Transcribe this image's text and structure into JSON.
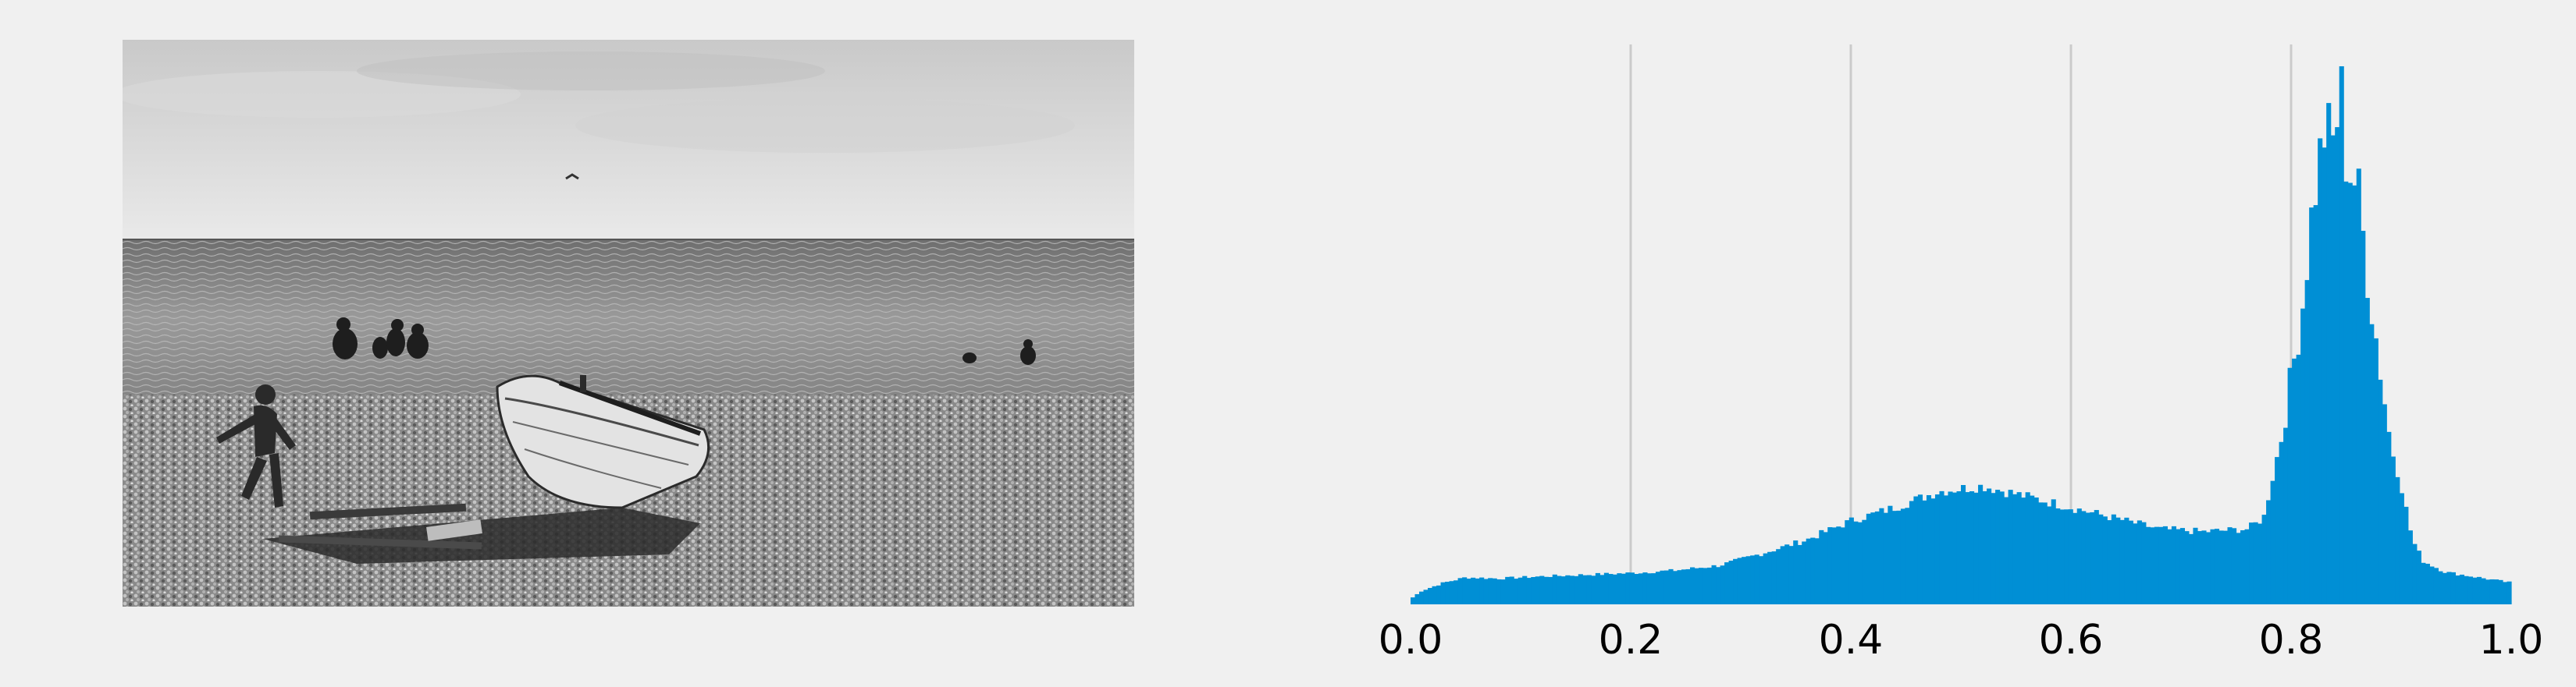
{
  "colors": {
    "background": "#f0f0f0",
    "bar": "#008fd5",
    "grid": "#cbcbcb"
  },
  "photo": {
    "description_icon": "beach-photo-icon"
  },
  "chart_data": {
    "type": "bar",
    "title": "",
    "xlabel": "",
    "ylabel": "",
    "xlim": [
      0.0,
      1.0
    ],
    "ylim": [
      0,
      1.0
    ],
    "grid": "x-only",
    "xticks": [
      0.0,
      0.2,
      0.4,
      0.6,
      0.8,
      1.0
    ],
    "xtick_labels": [
      "0.0",
      "0.2",
      "0.4",
      "0.6",
      "0.8",
      "1.0"
    ],
    "bins": 256,
    "profile_points": [
      [
        0.0,
        0.01
      ],
      [
        0.01,
        0.025
      ],
      [
        0.03,
        0.04
      ],
      [
        0.05,
        0.05
      ],
      [
        0.08,
        0.048
      ],
      [
        0.12,
        0.052
      ],
      [
        0.16,
        0.055
      ],
      [
        0.2,
        0.058
      ],
      [
        0.24,
        0.063
      ],
      [
        0.28,
        0.072
      ],
      [
        0.32,
        0.095
      ],
      [
        0.36,
        0.12
      ],
      [
        0.4,
        0.155
      ],
      [
        0.44,
        0.18
      ],
      [
        0.48,
        0.21
      ],
      [
        0.52,
        0.22
      ],
      [
        0.56,
        0.2
      ],
      [
        0.6,
        0.18
      ],
      [
        0.64,
        0.16
      ],
      [
        0.68,
        0.14
      ],
      [
        0.72,
        0.135
      ],
      [
        0.76,
        0.14
      ],
      [
        0.775,
        0.16
      ],
      [
        0.79,
        0.3
      ],
      [
        0.8,
        0.42
      ],
      [
        0.81,
        0.55
      ],
      [
        0.82,
        0.75
      ],
      [
        0.83,
        0.88
      ],
      [
        0.84,
        0.85
      ],
      [
        0.845,
        1.0
      ],
      [
        0.85,
        0.82
      ],
      [
        0.86,
        0.78
      ],
      [
        0.87,
        0.6
      ],
      [
        0.88,
        0.45
      ],
      [
        0.89,
        0.3
      ],
      [
        0.9,
        0.22
      ],
      [
        0.91,
        0.12
      ],
      [
        0.92,
        0.08
      ],
      [
        0.94,
        0.06
      ],
      [
        0.97,
        0.05
      ],
      [
        1.0,
        0.04
      ]
    ]
  }
}
